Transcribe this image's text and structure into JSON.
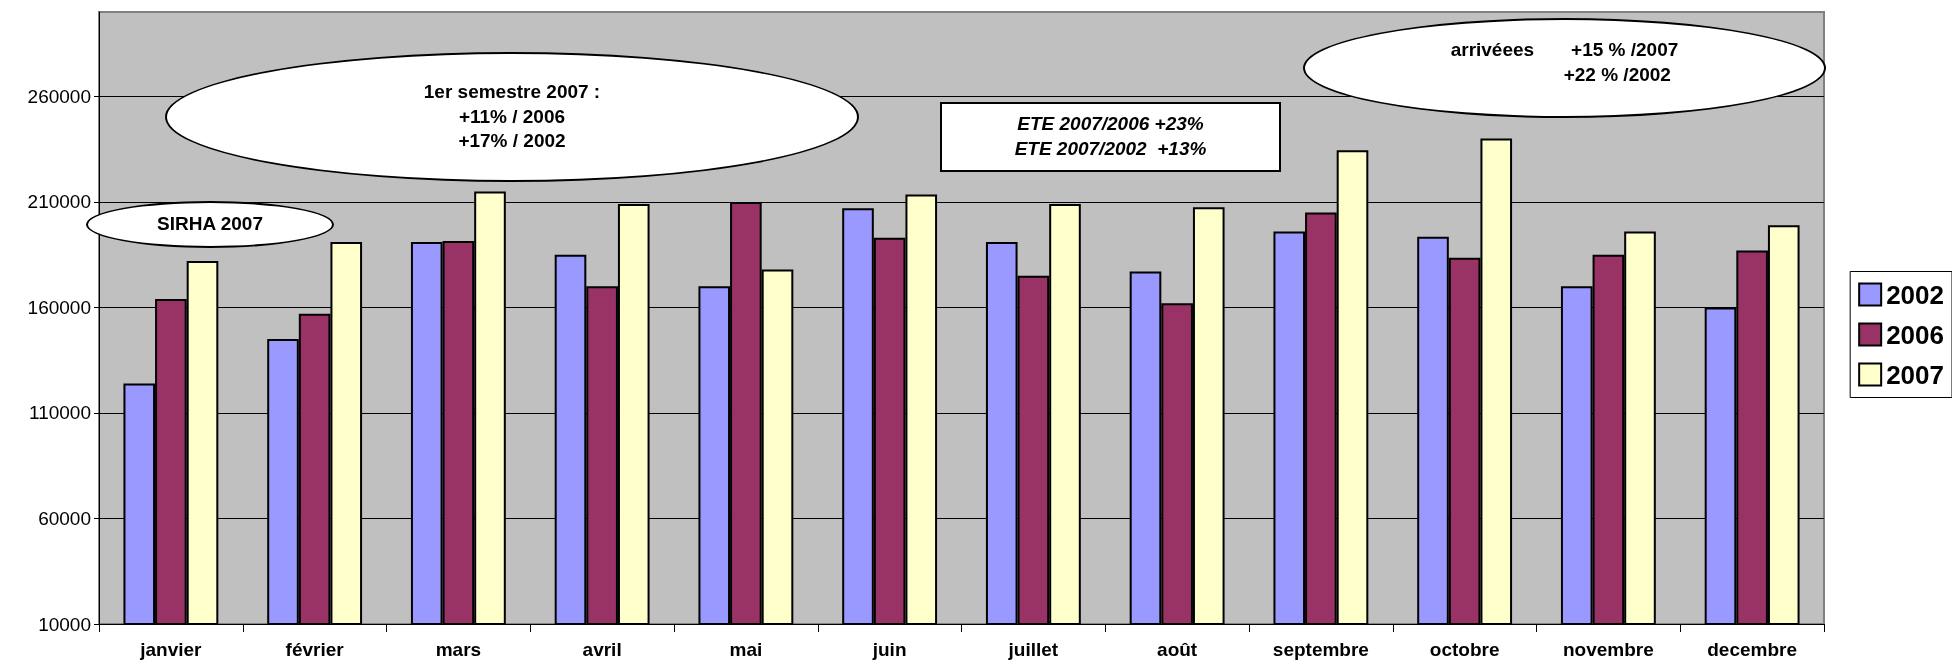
{
  "chart_data": {
    "type": "bar",
    "categories": [
      "janvier",
      "février",
      "mars",
      "avril",
      "mai",
      "juin",
      "juillet",
      "août",
      "septembre",
      "octobre",
      "novembre",
      "decembre"
    ],
    "series": [
      {
        "name": "2002",
        "color": "#9999ff",
        "values": [
          124000,
          145000,
          191000,
          185000,
          170000,
          207000,
          191000,
          177000,
          196000,
          193500,
          170000,
          160000
        ]
      },
      {
        "name": "2006",
        "color": "#993366",
        "values": [
          164000,
          157000,
          191500,
          170000,
          210000,
          193000,
          175000,
          162000,
          205000,
          183500,
          185000,
          187000
        ]
      },
      {
        "name": "2007",
        "color": "#ffffcc",
        "values": [
          182000,
          191000,
          215000,
          209000,
          178000,
          213500,
          209000,
          207500,
          234500,
          240000,
          196000,
          199000
        ]
      }
    ],
    "ylim": [
      10000,
      300000
    ],
    "yticks": [
      10000,
      60000,
      110000,
      160000,
      210000,
      260000
    ],
    "grid": "y",
    "legend": "right",
    "annotations": [
      "SIRHA 2007",
      "1er semestre 2007 :\n+11% / 2006\n+17% / 2002",
      "ETE 2007/2006 +23%\nETE 2007/2002  +13%",
      "arrivéees       +15 % /2007\n                    +22 % /2002"
    ]
  }
}
